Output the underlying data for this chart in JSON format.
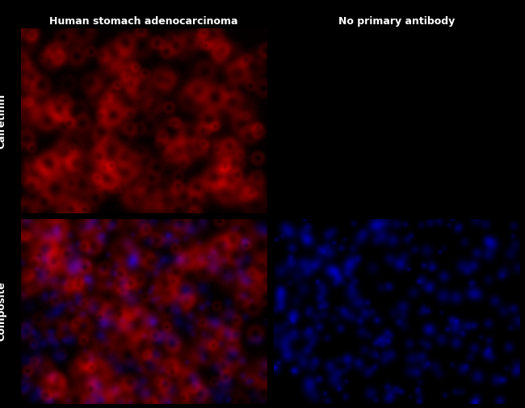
{
  "title_left": "Human stomach adenocarcinoma",
  "title_right": "No primary antibody",
  "label_top": "Calretinin",
  "label_bottom": "Composite",
  "label_color": "white",
  "title_color": "white",
  "background_color": "black",
  "fig_width": 6.5,
  "fig_height": 5.05,
  "dpi": 100,
  "noise_seed_tl": 42,
  "noise_seed_tr": 99,
  "noise_seed_bl": 7,
  "noise_seed_br": 13,
  "red_intensity_tl": 0.85,
  "red_intensity_tr": 0.04,
  "red_intensity_bl": 0.75,
  "blue_intensity_bl": 0.7,
  "blue_intensity_br": 0.75
}
